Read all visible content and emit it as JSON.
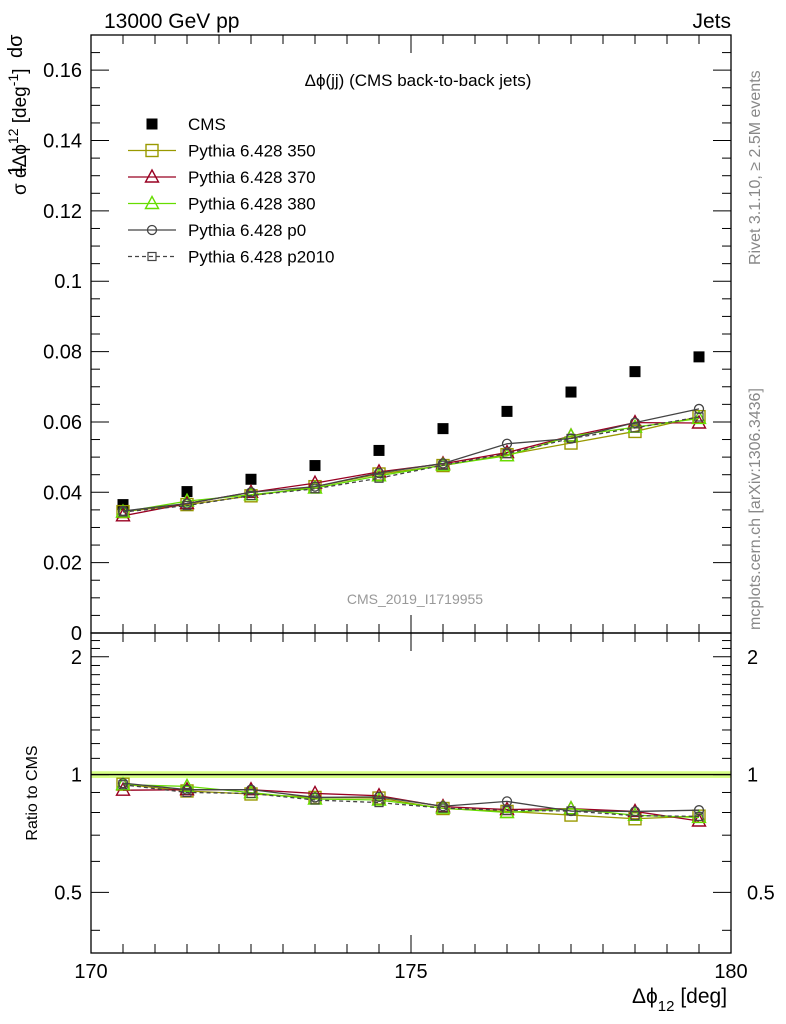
{
  "header": {
    "left": "13000 GeV pp",
    "right": "Jets"
  },
  "side_text": {
    "rivet": "Rivet 3.1.10, ≥ 2.5M events",
    "mcplots": "mcplots.cern.ch [arXiv:1306.3436]"
  },
  "chart_data": [
    {
      "type": "scatter",
      "title": "Δϕ(jj) (CMS back-to-back jets)",
      "watermark": "CMS_2019_I1719955",
      "xlabel": "Δϕ₁₂ [deg]",
      "ylabel": "1/σ dσ/dΔϕ₁₂ [deg⁻¹]",
      "xlim": [
        170,
        180
      ],
      "ylim": [
        0,
        0.17
      ],
      "xticks": [
        "170",
        "175",
        "180"
      ],
      "yticks": [
        "0",
        "0.02",
        "0.04",
        "0.06",
        "0.08",
        "0.1",
        "0.12",
        "0.14",
        "0.16"
      ],
      "legend_position": "top-left",
      "x": [
        170.5,
        171.5,
        172.5,
        173.5,
        174.5,
        175.5,
        176.5,
        177.5,
        178.5,
        179.5
      ],
      "series": [
        {
          "name": "CMS",
          "color": "#000000",
          "marker": "filled-square",
          "line": "none",
          "values": [
            0.0365,
            0.0402,
            0.0437,
            0.0476,
            0.0519,
            0.0581,
            0.063,
            0.0685,
            0.0743,
            0.0785
          ]
        },
        {
          "name": "Pythia 6.428 350",
          "color": "#999900",
          "marker": "open-square",
          "line": "solid",
          "values": [
            0.0345,
            0.0365,
            0.039,
            0.0416,
            0.0452,
            0.0476,
            0.0507,
            0.054,
            0.0573,
            0.0615
          ]
        },
        {
          "name": "Pythia 6.428 370",
          "color": "#990022",
          "marker": "open-triangle",
          "line": "solid",
          "values": [
            0.0333,
            0.0368,
            0.04,
            0.0426,
            0.0458,
            0.0481,
            0.0513,
            0.056,
            0.0598,
            0.0597
          ]
        },
        {
          "name": "Pythia 6.428 380",
          "color": "#66dd00",
          "marker": "open-triangle",
          "line": "solid",
          "values": [
            0.0344,
            0.0375,
            0.0393,
            0.0412,
            0.0447,
            0.0477,
            0.0504,
            0.056,
            0.0585,
            0.061
          ]
        },
        {
          "name": "Pythia 6.428 p0",
          "color": "#444444",
          "marker": "open-circle",
          "line": "solid",
          "values": [
            0.0347,
            0.0368,
            0.04,
            0.0416,
            0.0455,
            0.0482,
            0.0538,
            0.0553,
            0.0598,
            0.0637
          ]
        },
        {
          "name": "Pythia 6.428 p2010",
          "color": "#444444",
          "marker": "open-square-small",
          "line": "dashed",
          "values": [
            0.0344,
            0.0362,
            0.0391,
            0.041,
            0.044,
            0.0477,
            0.051,
            0.0553,
            0.0583,
            0.0614
          ]
        }
      ]
    },
    {
      "type": "scatter",
      "ylabel": "Ratio to CMS",
      "xlabel": "Δϕ₁₂ [deg]",
      "xlim": [
        170,
        180
      ],
      "ylim": [
        0.35,
        2.3
      ],
      "yscale": "log",
      "yticks": [
        "0.5",
        "1",
        "2"
      ],
      "reference_band": {
        "value": 1.0,
        "color": "#ccff66"
      },
      "x": [
        170.5,
        171.5,
        172.5,
        173.5,
        174.5,
        175.5,
        176.5,
        177.5,
        178.5,
        179.5
      ],
      "series": [
        {
          "name": "Pythia 6.428 350",
          "values": [
            0.945,
            0.908,
            0.892,
            0.874,
            0.871,
            0.819,
            0.805,
            0.788,
            0.771,
            0.783
          ]
        },
        {
          "name": "Pythia 6.428 370",
          "values": [
            0.912,
            0.915,
            0.915,
            0.895,
            0.883,
            0.828,
            0.814,
            0.818,
            0.805,
            0.761
          ]
        },
        {
          "name": "Pythia 6.428 380",
          "values": [
            0.942,
            0.933,
            0.899,
            0.866,
            0.861,
            0.821,
            0.8,
            0.818,
            0.787,
            0.777
          ]
        },
        {
          "name": "Pythia 6.428 p0",
          "values": [
            0.951,
            0.915,
            0.915,
            0.874,
            0.877,
            0.83,
            0.854,
            0.807,
            0.805,
            0.811
          ]
        },
        {
          "name": "Pythia 6.428 p2010",
          "values": [
            0.942,
            0.9,
            0.895,
            0.861,
            0.848,
            0.821,
            0.81,
            0.807,
            0.785,
            0.782
          ]
        }
      ]
    }
  ]
}
